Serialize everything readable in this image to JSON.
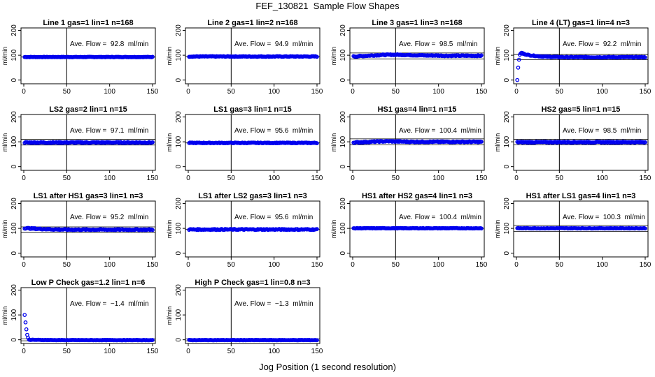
{
  "title": "FEF_130821  Sample Flow Shapes",
  "xlabel": "Jog Position (1 second resolution)",
  "colors": {
    "points": "#0000ee",
    "lines": "#000000"
  },
  "chart_data": [
    {
      "type": "scatter",
      "title": "Line 1 gas=1 lin=1 n=168",
      "ylabel": "ml/min",
      "annotation": "Ave. Flow =  92.8  ml/min",
      "xlim": [
        0,
        150
      ],
      "ylim": [
        -15,
        210
      ],
      "x_ticks": [
        0,
        50,
        100,
        150
      ],
      "y_ticks": [
        0,
        100,
        200
      ],
      "vline": 50,
      "hlines": [
        92.8
      ],
      "series": [
        {
          "x_range": [
            1,
            150
          ],
          "values": [
            92.8
          ],
          "noise": 1
        }
      ]
    },
    {
      "type": "scatter",
      "title": "Line 2 gas=1 lin=2 n=168",
      "ylabel": "ml/min",
      "annotation": "Ave. Flow =  94.9  ml/min",
      "xlim": [
        0,
        150
      ],
      "ylim": [
        -15,
        210
      ],
      "x_ticks": [
        0,
        50,
        100,
        150
      ],
      "y_ticks": [
        0,
        100,
        200
      ],
      "vline": 50,
      "hlines": [
        94.9
      ],
      "series": [
        {
          "x_range": [
            1,
            150
          ],
          "values": [
            94.9
          ],
          "noise": 1.5
        }
      ]
    },
    {
      "type": "scatter",
      "title": "Line 3 gas=1 lin=3 n=168",
      "ylabel": "ml/min",
      "annotation": "Ave. Flow =  98.5  ml/min",
      "xlim": [
        0,
        150
      ],
      "ylim": [
        -15,
        210
      ],
      "x_ticks": [
        0,
        50,
        100,
        150
      ],
      "y_ticks": [
        0,
        100,
        200
      ],
      "vline": 50,
      "hlines": [
        85,
        109
      ],
      "series": [
        {
          "x_range": [
            1,
            150
          ],
          "values": [
            95,
            97,
            99,
            101,
            102,
            102,
            101,
            100,
            99,
            99,
            98,
            98,
            98,
            98,
            98
          ],
          "noise": 2
        }
      ]
    },
    {
      "type": "scatter",
      "title": "Line 4 (LT) gas=1 lin=4 n=3",
      "ylabel": "ml/min",
      "annotation": "Ave. Flow =  92.2  ml/min",
      "xlim": [
        0,
        150
      ],
      "ylim": [
        -15,
        210
      ],
      "x_ticks": [
        0,
        50,
        100,
        150
      ],
      "y_ticks": [
        0,
        100,
        200
      ],
      "vline": 50,
      "hlines": [
        82,
        103
      ],
      "series": [
        {
          "x_range": [
            5,
            150
          ],
          "values": [
            108,
            100,
            96,
            94,
            93,
            92,
            92,
            92,
            92,
            92,
            92,
            92,
            92,
            92,
            92
          ],
          "noise": 1.5
        }
      ],
      "extra_points": [
        [
          1,
          0
        ],
        [
          2,
          50
        ],
        [
          3,
          82
        ],
        [
          4,
          102
        ],
        [
          6,
          110
        ],
        [
          7,
          109
        ]
      ]
    },
    {
      "type": "scatter",
      "title": "LS2 gas=2 lin=1 n=15",
      "ylabel": "ml/min",
      "annotation": "Ave. Flow =  97.1  ml/min",
      "xlim": [
        0,
        150
      ],
      "ylim": [
        -15,
        210
      ],
      "x_ticks": [
        0,
        50,
        100,
        150
      ],
      "y_ticks": [
        0,
        100,
        200
      ],
      "vline": 50,
      "hlines": [
        87,
        110
      ],
      "series": [
        {
          "x_range": [
            1,
            150
          ],
          "values": [
            97.1
          ],
          "noise": 2
        }
      ]
    },
    {
      "type": "scatter",
      "title": "LS1 gas=3 lin=1 n=15",
      "ylabel": "ml/min",
      "annotation": "Ave. Flow =  95.6  ml/min",
      "xlim": [
        0,
        150
      ],
      "ylim": [
        -15,
        210
      ],
      "x_ticks": [
        0,
        50,
        100,
        150
      ],
      "y_ticks": [
        0,
        100,
        200
      ],
      "vline": 50,
      "hlines": [
        95.6
      ],
      "series": [
        {
          "x_range": [
            1,
            150
          ],
          "values": [
            95.6
          ],
          "noise": 1.5
        }
      ]
    },
    {
      "type": "scatter",
      "title": "HS1 gas=4 lin=1 n=15",
      "ylabel": "ml/min",
      "annotation": "Ave. Flow =  100.4  ml/min",
      "xlim": [
        0,
        150
      ],
      "ylim": [
        -15,
        210
      ],
      "x_ticks": [
        0,
        50,
        100,
        150
      ],
      "y_ticks": [
        0,
        100,
        200
      ],
      "vline": 50,
      "hlines": [
        88,
        112
      ],
      "series": [
        {
          "x_range": [
            1,
            150
          ],
          "values": [
            97,
            99,
            101,
            102,
            101,
            100,
            100,
            100,
            100,
            100,
            100,
            100
          ],
          "noise": 2
        }
      ]
    },
    {
      "type": "scatter",
      "title": "HS2 gas=5 lin=1 n=15",
      "ylabel": "ml/min",
      "annotation": "Ave. Flow =  98.5  ml/min",
      "xlim": [
        0,
        150
      ],
      "ylim": [
        -15,
        210
      ],
      "x_ticks": [
        0,
        50,
        100,
        150
      ],
      "y_ticks": [
        0,
        100,
        200
      ],
      "vline": 50,
      "hlines": [
        88,
        110
      ],
      "series": [
        {
          "x_range": [
            1,
            150
          ],
          "values": [
            98.5
          ],
          "noise": 2
        }
      ]
    },
    {
      "type": "scatter",
      "title": "LS1 after HS1 gas=3 lin=1 n=3",
      "ylabel": "ml/min",
      "annotation": "Ave. Flow =  95.2  ml/min",
      "xlim": [
        0,
        150
      ],
      "ylim": [
        -15,
        210
      ],
      "x_ticks": [
        0,
        50,
        100,
        150
      ],
      "y_ticks": [
        0,
        100,
        200
      ],
      "vline": 50,
      "hlines": [
        84,
        106
      ],
      "series": [
        {
          "x_range": [
            1,
            150
          ],
          "values": [
            101,
            98,
            96,
            95,
            95,
            95,
            95,
            95,
            95,
            95
          ],
          "noise": 2
        }
      ]
    },
    {
      "type": "scatter",
      "title": "LS1 after LS2 gas=3 lin=1 n=3",
      "ylabel": "ml/min",
      "annotation": "Ave. Flow =  95.6  ml/min",
      "xlim": [
        0,
        150
      ],
      "ylim": [
        -15,
        210
      ],
      "x_ticks": [
        0,
        50,
        100,
        150
      ],
      "y_ticks": [
        0,
        100,
        200
      ],
      "vline": 50,
      "hlines": [
        95.6
      ],
      "series": [
        {
          "x_range": [
            1,
            150
          ],
          "values": [
            95.6
          ],
          "noise": 2
        }
      ]
    },
    {
      "type": "scatter",
      "title": "HS1 after HS2 gas=4 lin=1 n=3",
      "ylabel": "ml/min",
      "annotation": "Ave. Flow =  100.4  ml/min",
      "xlim": [
        0,
        150
      ],
      "ylim": [
        -15,
        210
      ],
      "x_ticks": [
        0,
        50,
        100,
        150
      ],
      "y_ticks": [
        0,
        100,
        200
      ],
      "vline": 50,
      "hlines": [
        100.4
      ],
      "series": [
        {
          "x_range": [
            1,
            150
          ],
          "values": [
            100.4
          ],
          "noise": 1
        }
      ]
    },
    {
      "type": "scatter",
      "title": "HS1 after LS1 gas=4 lin=1 n=3",
      "ylabel": "ml/min",
      "annotation": "Ave. Flow =  100.3  ml/min",
      "xlim": [
        0,
        150
      ],
      "ylim": [
        -15,
        210
      ],
      "x_ticks": [
        0,
        50,
        100,
        150
      ],
      "y_ticks": [
        0,
        100,
        200
      ],
      "vline": 50,
      "hlines": [
        88,
        112
      ],
      "series": [
        {
          "x_range": [
            1,
            150
          ],
          "values": [
            100.3
          ],
          "noise": 1
        }
      ]
    },
    {
      "type": "scatter",
      "title": "Low P Check gas=1.2 lin=1 n=6",
      "ylabel": "ml/min",
      "annotation": "Ave. Flow =  −1.4  ml/min",
      "xlim": [
        0,
        150
      ],
      "ylim": [
        -15,
        210
      ],
      "x_ticks": [
        0,
        50,
        100,
        150
      ],
      "y_ticks": [
        0,
        100,
        200
      ],
      "vline": 50,
      "hlines": [
        -4,
        4
      ],
      "series": [
        {
          "x_range": [
            6,
            150
          ],
          "values": [
            0,
            -1,
            -1.4,
            -1.4,
            -1.4,
            -1.4,
            -1.4,
            -1.4
          ],
          "noise": 0.8
        }
      ],
      "extra_points": [
        [
          1,
          100
        ],
        [
          2,
          70
        ],
        [
          3,
          42
        ],
        [
          4,
          20
        ],
        [
          5,
          8
        ]
      ]
    },
    {
      "type": "scatter",
      "title": "High P Check gas=1 lin=0.8 n=3",
      "ylabel": "ml/min",
      "annotation": "Ave. Flow =  −1.3  ml/min",
      "xlim": [
        0,
        150
      ],
      "ylim": [
        -15,
        210
      ],
      "x_ticks": [
        0,
        50,
        100,
        150
      ],
      "y_ticks": [
        0,
        100,
        200
      ],
      "vline": 50,
      "hlines": [
        -4,
        4
      ],
      "series": [
        {
          "x_range": [
            1,
            150
          ],
          "values": [
            -1.3
          ],
          "noise": 0.8
        }
      ]
    }
  ]
}
